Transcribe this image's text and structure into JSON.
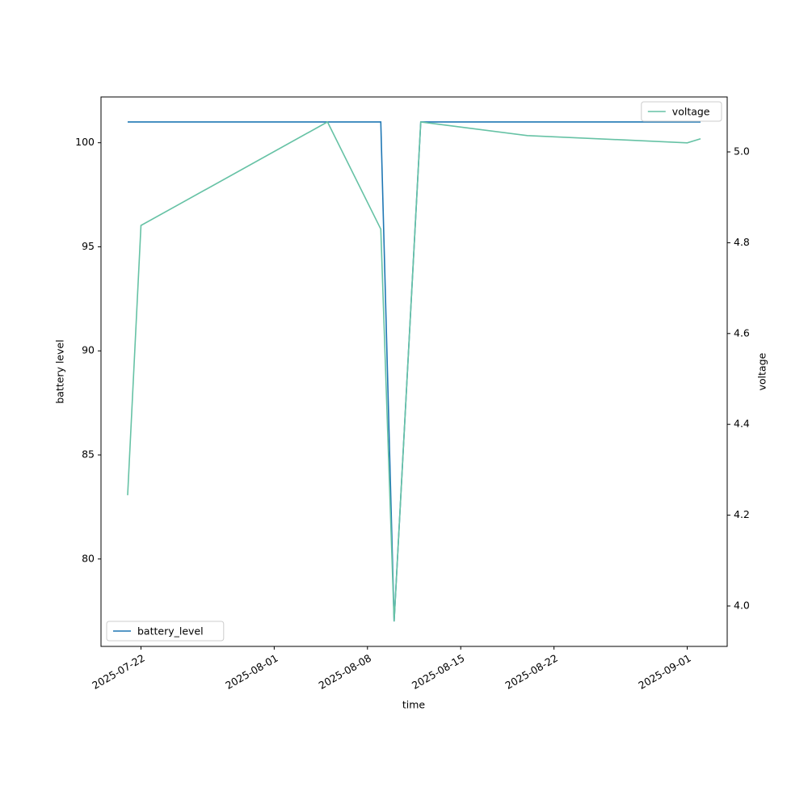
{
  "chart_data": {
    "type": "line",
    "xlabel": "time",
    "ylabel": "battery level",
    "y2label": "voltage",
    "xlim": [
      "2025-07-19",
      "2025-09-04"
    ],
    "xticks": [
      "2025-07-22",
      "2025-08-01",
      "2025-08-08",
      "2025-08-15",
      "2025-08-22",
      "2025-09-01"
    ],
    "ylim": [
      75.8,
      102.2
    ],
    "yticks": [
      80,
      85,
      90,
      95,
      100
    ],
    "y2lim": [
      3.911,
      5.121
    ],
    "y2ticks": [
      {
        "value": 4.0,
        "label": "4.0"
      },
      {
        "value": 4.2,
        "label": "4.2"
      },
      {
        "value": 4.4,
        "label": "4.4"
      },
      {
        "value": 4.6,
        "label": "4.6"
      },
      {
        "value": 4.8,
        "label": "4.8"
      },
      {
        "value": 5.0,
        "label": "5.0"
      }
    ],
    "series": [
      {
        "name": "battery_level",
        "color": "#1f77b4",
        "legend": "lower left",
        "x": [
          "2025-07-21",
          "2025-08-09",
          "2025-08-10",
          "2025-08-12",
          "2025-09-02"
        ],
        "values": [
          101,
          101,
          77,
          101,
          101
        ]
      },
      {
        "name": "voltage",
        "color": "#66c2a5",
        "axis": "y2",
        "legend": "upper right",
        "x": [
          "2025-07-21",
          "2025-07-22",
          "2025-08-05",
          "2025-08-09",
          "2025-08-10",
          "2025-08-12",
          "2025-08-20",
          "2025-09-01",
          "2025-09-02"
        ],
        "values": [
          4.244,
          4.838,
          5.066,
          4.83,
          3.966,
          5.066,
          5.036,
          5.02,
          5.029
        ]
      }
    ]
  }
}
